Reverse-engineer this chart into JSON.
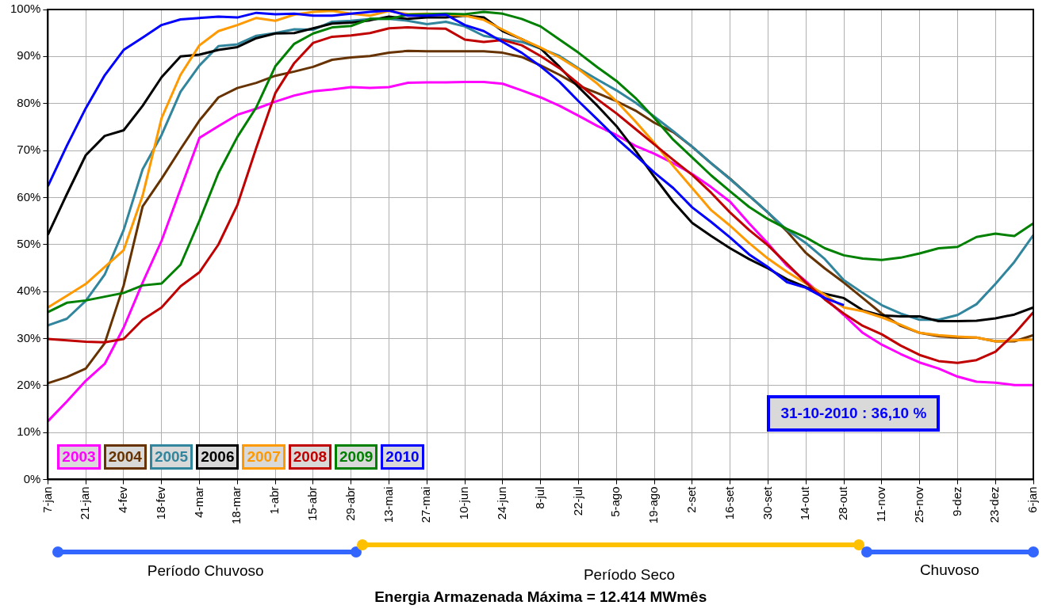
{
  "chart_data": {
    "type": "line",
    "categories": [
      "7-jan",
      null,
      "21-jan",
      null,
      "4-fev",
      null,
      "18-fev",
      null,
      "4-mar",
      null,
      "18-mar",
      null,
      "1-abr",
      null,
      "15-abr",
      null,
      "29-abr",
      null,
      "13-mai",
      null,
      "27-mai",
      null,
      "10-jun",
      null,
      "24-jun",
      null,
      "8-jul",
      null,
      "22-jul",
      null,
      "5-ago",
      null,
      "19-ago",
      null,
      "2-set",
      null,
      "16-set",
      null,
      "30-set",
      null,
      "14-out",
      null,
      "28-out",
      null,
      "11-nov",
      null,
      "25-nov",
      null,
      "9-dez",
      null,
      "23-dez",
      null,
      "6-jan"
    ],
    "series": [
      {
        "name": "2003",
        "color": "#ff00ff",
        "values": [
          12.4,
          16.6,
          21,
          24.6,
          32.3,
          41.9,
          50.8,
          61.8,
          72.7,
          75.2,
          77.6,
          78.9,
          80.4,
          81.7,
          82.6,
          83,
          83.5,
          83.3,
          83.5,
          84.4,
          84.5,
          84.5,
          84.6,
          84.6,
          84.2,
          82.8,
          81.3,
          79.5,
          77.4,
          75.2,
          73.3,
          71,
          69.3,
          67.3,
          65,
          62.2,
          59.1,
          54.5,
          50.2,
          45.5,
          42.2,
          38.6,
          35,
          31.2,
          28.7,
          26.7,
          24.9,
          23.6,
          21.9,
          20.8,
          20.6,
          20.1,
          20.1
        ]
      },
      {
        "name": "2004",
        "color": "#663300",
        "values": [
          20.5,
          21.8,
          23.6,
          29,
          41.3,
          58.1,
          64,
          70.3,
          76.4,
          81.3,
          83.3,
          84.4,
          85.9,
          86.8,
          87.8,
          89.3,
          89.8,
          90.1,
          90.8,
          91.2,
          91.1,
          91.1,
          91.1,
          91.1,
          90.8,
          89.9,
          88.1,
          86.1,
          83.8,
          82.2,
          80.5,
          78.5,
          75.9,
          73.9,
          70.8,
          67.3,
          64,
          60.4,
          56.8,
          52.8,
          48.2,
          44.9,
          41.9,
          38.6,
          35.3,
          32.7,
          31.2,
          30.5,
          30.2,
          30.2,
          29.4,
          29.4,
          30.7
        ]
      },
      {
        "name": "2005",
        "color": "#31859c",
        "values": [
          32.8,
          34.2,
          38,
          43.6,
          53.1,
          66,
          73.3,
          82.5,
          88.1,
          92.2,
          92.6,
          94.4,
          95,
          95.8,
          95.7,
          97.4,
          97.6,
          98,
          98,
          97.6,
          96.9,
          97.4,
          96.4,
          94.4,
          93.7,
          93.1,
          91.7,
          90.1,
          87.5,
          85.1,
          82.8,
          80.2,
          77.2,
          74.1,
          70.8,
          67.3,
          63.9,
          60.4,
          56.8,
          53.1,
          50.3,
          46.9,
          42.4,
          39.7,
          37.1,
          35.3,
          34,
          34,
          35,
          37.3,
          41.6,
          46.3,
          52
        ]
      },
      {
        "name": "2006",
        "color": "#000000",
        "values": [
          52.1,
          60.7,
          69,
          73.1,
          74.3,
          79.5,
          85.6,
          90,
          90.4,
          91.4,
          92,
          93.9,
          94.9,
          95,
          96,
          97,
          97.2,
          97.7,
          98.5,
          98,
          98.3,
          98.3,
          98.7,
          98.3,
          95.4,
          93.7,
          91.7,
          87.8,
          83.5,
          79.5,
          75.2,
          70,
          64.4,
          59.1,
          54.6,
          51.8,
          49.2,
          46.9,
          44.9,
          42.6,
          40.9,
          39.5,
          38.6,
          36,
          34.9,
          34.7,
          34.7,
          33.7,
          33.7,
          33.8,
          34.3,
          35.1,
          36.6
        ]
      },
      {
        "name": "2007",
        "color": "#ff9900",
        "values": [
          36.6,
          39.1,
          41.6,
          45.2,
          48.8,
          60.4,
          76.9,
          86.1,
          92.4,
          95.4,
          96.7,
          98.2,
          97.6,
          98.9,
          99.5,
          99.7,
          99.1,
          98.7,
          99.7,
          99,
          99.1,
          98.9,
          98.7,
          97.8,
          95.7,
          93.7,
          91.9,
          89.8,
          87.3,
          84.2,
          80.5,
          76.2,
          71.6,
          66.7,
          62,
          57.3,
          54,
          50.3,
          47,
          44.2,
          41.7,
          39.3,
          36.6,
          35.8,
          34.5,
          32.9,
          31.2,
          30.7,
          30.4,
          30.2,
          29.4,
          29.6,
          29.8
        ]
      },
      {
        "name": "2008",
        "color": "#c00000",
        "values": [
          29.9,
          29.6,
          29.3,
          29.2,
          29.9,
          34,
          36.6,
          41.1,
          44.1,
          50,
          58.4,
          70.6,
          82.2,
          88.6,
          92.9,
          94.2,
          94.5,
          95,
          96,
          96.2,
          96,
          95.9,
          93.6,
          93.1,
          93.5,
          92.4,
          90.1,
          87.5,
          84.2,
          80.9,
          77.9,
          74.6,
          71.3,
          68,
          64.8,
          61,
          56.8,
          53.1,
          49.8,
          45.9,
          41.9,
          38.3,
          35.3,
          32.7,
          30.9,
          28.5,
          26.5,
          25.2,
          24.8,
          25.4,
          27.2,
          31,
          35.6
        ]
      },
      {
        "name": "2009",
        "color": "#008000",
        "values": [
          35.6,
          37.6,
          38.1,
          38.9,
          39.7,
          41.3,
          41.7,
          45.7,
          55.1,
          65.2,
          72.9,
          79.2,
          87.9,
          92.7,
          94.9,
          96.2,
          96.5,
          98,
          98,
          98.9,
          99,
          99.1,
          99,
          99.5,
          99.1,
          98,
          96.4,
          93.6,
          90.8,
          87.7,
          84.8,
          81.2,
          76.9,
          72.3,
          68.5,
          64.7,
          61.3,
          58,
          55.4,
          53.3,
          51.5,
          49.2,
          47.7,
          47,
          46.7,
          47.2,
          48.1,
          49.2,
          49.5,
          51.6,
          52.3,
          51.8,
          54.5
        ]
      },
      {
        "name": "2010",
        "color": "#0000ff",
        "values": [
          62.4,
          71,
          79,
          86,
          91.4,
          94,
          96.7,
          97.9,
          98.2,
          98.5,
          98.3,
          99.3,
          99,
          99.1,
          98.7,
          98.7,
          99.1,
          99.5,
          99.8,
          98.7,
          98.7,
          98.9,
          96.7,
          95.4,
          93.1,
          90.8,
          87.9,
          84.6,
          80.5,
          76.6,
          72.6,
          69,
          65.3,
          62,
          57.9,
          54.8,
          51.5,
          47.9,
          45.2,
          42,
          40.8,
          38.6,
          37.1,
          null,
          null,
          null,
          null,
          null,
          null,
          null,
          null,
          null,
          null
        ]
      }
    ],
    "ylim": [
      0,
      100
    ],
    "yticks": [
      {
        "value": 0,
        "label": "0%"
      },
      {
        "value": 10,
        "label": "10%"
      },
      {
        "value": 20,
        "label": "20%"
      },
      {
        "value": 30,
        "label": "30%"
      },
      {
        "value": 40,
        "label": "40%"
      },
      {
        "value": 50,
        "label": "50%"
      },
      {
        "value": 60,
        "label": "60%"
      },
      {
        "value": 70,
        "label": "70%"
      },
      {
        "value": 80,
        "label": "80%"
      },
      {
        "value": 90,
        "label": "90%"
      },
      {
        "value": 100,
        "label": "100%"
      }
    ],
    "grid": true,
    "legend": "bottom left",
    "marker": "none",
    "line_style": "solid",
    "annotations": [
      "31-10-2010 : 36,10 %",
      "Período Chuvoso",
      "Período Seco",
      "Chuvoso",
      "Energia Armazenada Máxima = 12.414 MWmês"
    ]
  }
}
